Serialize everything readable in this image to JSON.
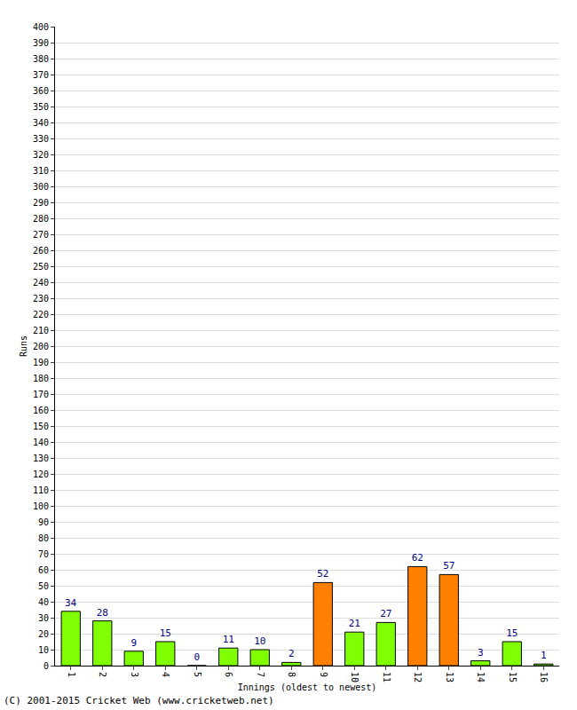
{
  "chart_data": {
    "type": "bar",
    "categories": [
      "1",
      "2",
      "3",
      "4",
      "5",
      "6",
      "7",
      "8",
      "9",
      "10",
      "11",
      "12",
      "13",
      "14",
      "15",
      "16"
    ],
    "values": [
      34,
      28,
      9,
      15,
      0,
      11,
      10,
      2,
      52,
      21,
      27,
      62,
      57,
      3,
      15,
      1
    ],
    "colors": [
      "#80ff00",
      "#80ff00",
      "#80ff00",
      "#80ff00",
      "#80ff00",
      "#80ff00",
      "#80ff00",
      "#80ff00",
      "#ff8000",
      "#80ff00",
      "#80ff00",
      "#ff8000",
      "#ff8000",
      "#80ff00",
      "#80ff00",
      "#80ff00"
    ],
    "x_label": "Innings (oldest to newest)",
    "y_label": "Runs",
    "ylim": [
      0,
      400
    ],
    "yticks": [
      0,
      10,
      20,
      30,
      40,
      50,
      60,
      70,
      80,
      90,
      100,
      110,
      120,
      130,
      140,
      150,
      160,
      170,
      180,
      190,
      200,
      210,
      220,
      230,
      240,
      250,
      260,
      270,
      280,
      290,
      300,
      310,
      320,
      330,
      340,
      350,
      360,
      370,
      380,
      390,
      400
    ],
    "grid": true,
    "data_labels": true,
    "annotations": [
      "(C) 2001-2015 Cricket Web (www.cricketweb.net)"
    ]
  }
}
